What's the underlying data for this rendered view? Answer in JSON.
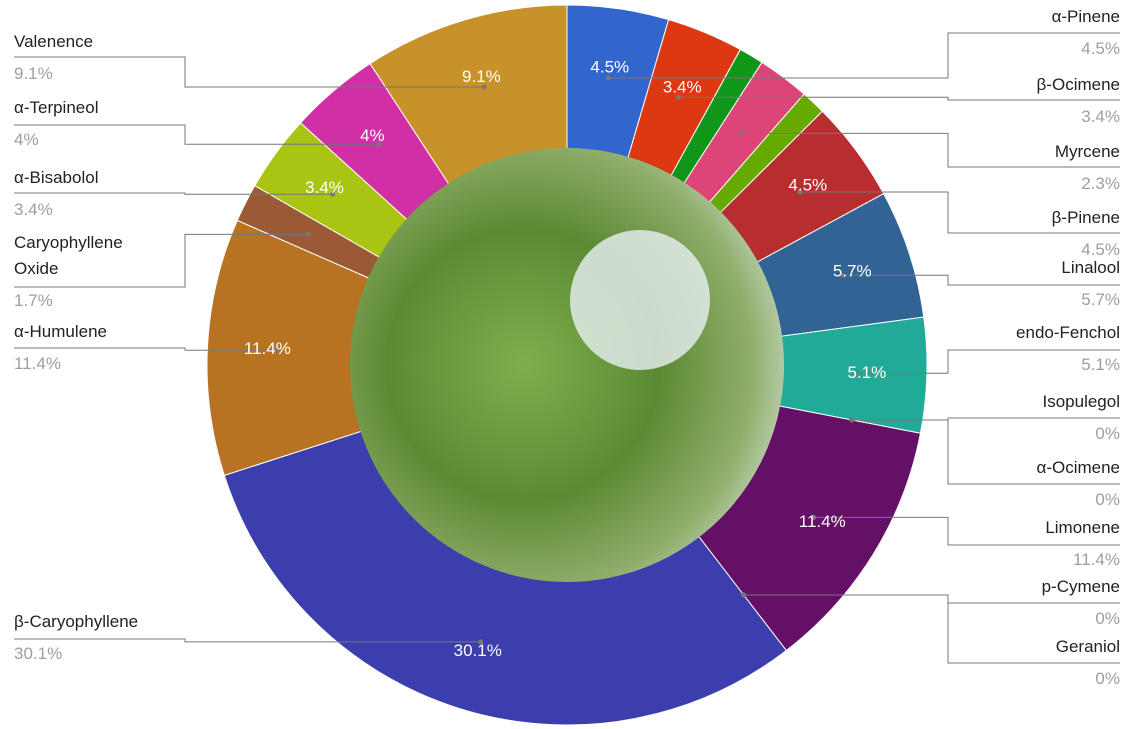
{
  "chart_data": {
    "type": "donut",
    "categories": [
      "α-Pinene",
      "β-Ocimene",
      null,
      "Myrcene",
      null,
      "β-Pinene",
      "Linalool",
      "endo-Fenchol",
      "Isopulegol",
      "α-Ocimene",
      "Limonene",
      "p-Cymene",
      "Geraniol",
      "β-Caryophyllene",
      "α-Humulene",
      "Caryophyllene Oxide",
      "α-Bisabolol",
      "α-Terpineol",
      "Valenence"
    ],
    "values": [
      4.5,
      3.4,
      1.1,
      2.3,
      1.1,
      4.5,
      5.7,
      5.1,
      0,
      0,
      11.4,
      0,
      0,
      30.1,
      11.4,
      1.7,
      3.4,
      4,
      9.1
    ],
    "value_labels": [
      "4.5%",
      "3.4%",
      null,
      "2.3%",
      null,
      "4.5%",
      "5.7%",
      "5.1%",
      "0%",
      "0%",
      "11.4%",
      "0%",
      "0%",
      "30.1%",
      "11.4%",
      "1.7%",
      "3.4%",
      "4%",
      "9.1%"
    ],
    "colors": [
      "#3366cc",
      "#dc3912",
      "#109618",
      "#dd4477",
      "#66aa00",
      "#b82e2e",
      "#316395",
      "#22aa99",
      "#aaaa11",
      "#6633cc",
      "#651067",
      "#329262",
      "#5574a6",
      "#3b3eac",
      "#b77322",
      "#9c5935",
      "#a9c413",
      "#d12fa6",
      "#c8922a"
    ]
  }
}
